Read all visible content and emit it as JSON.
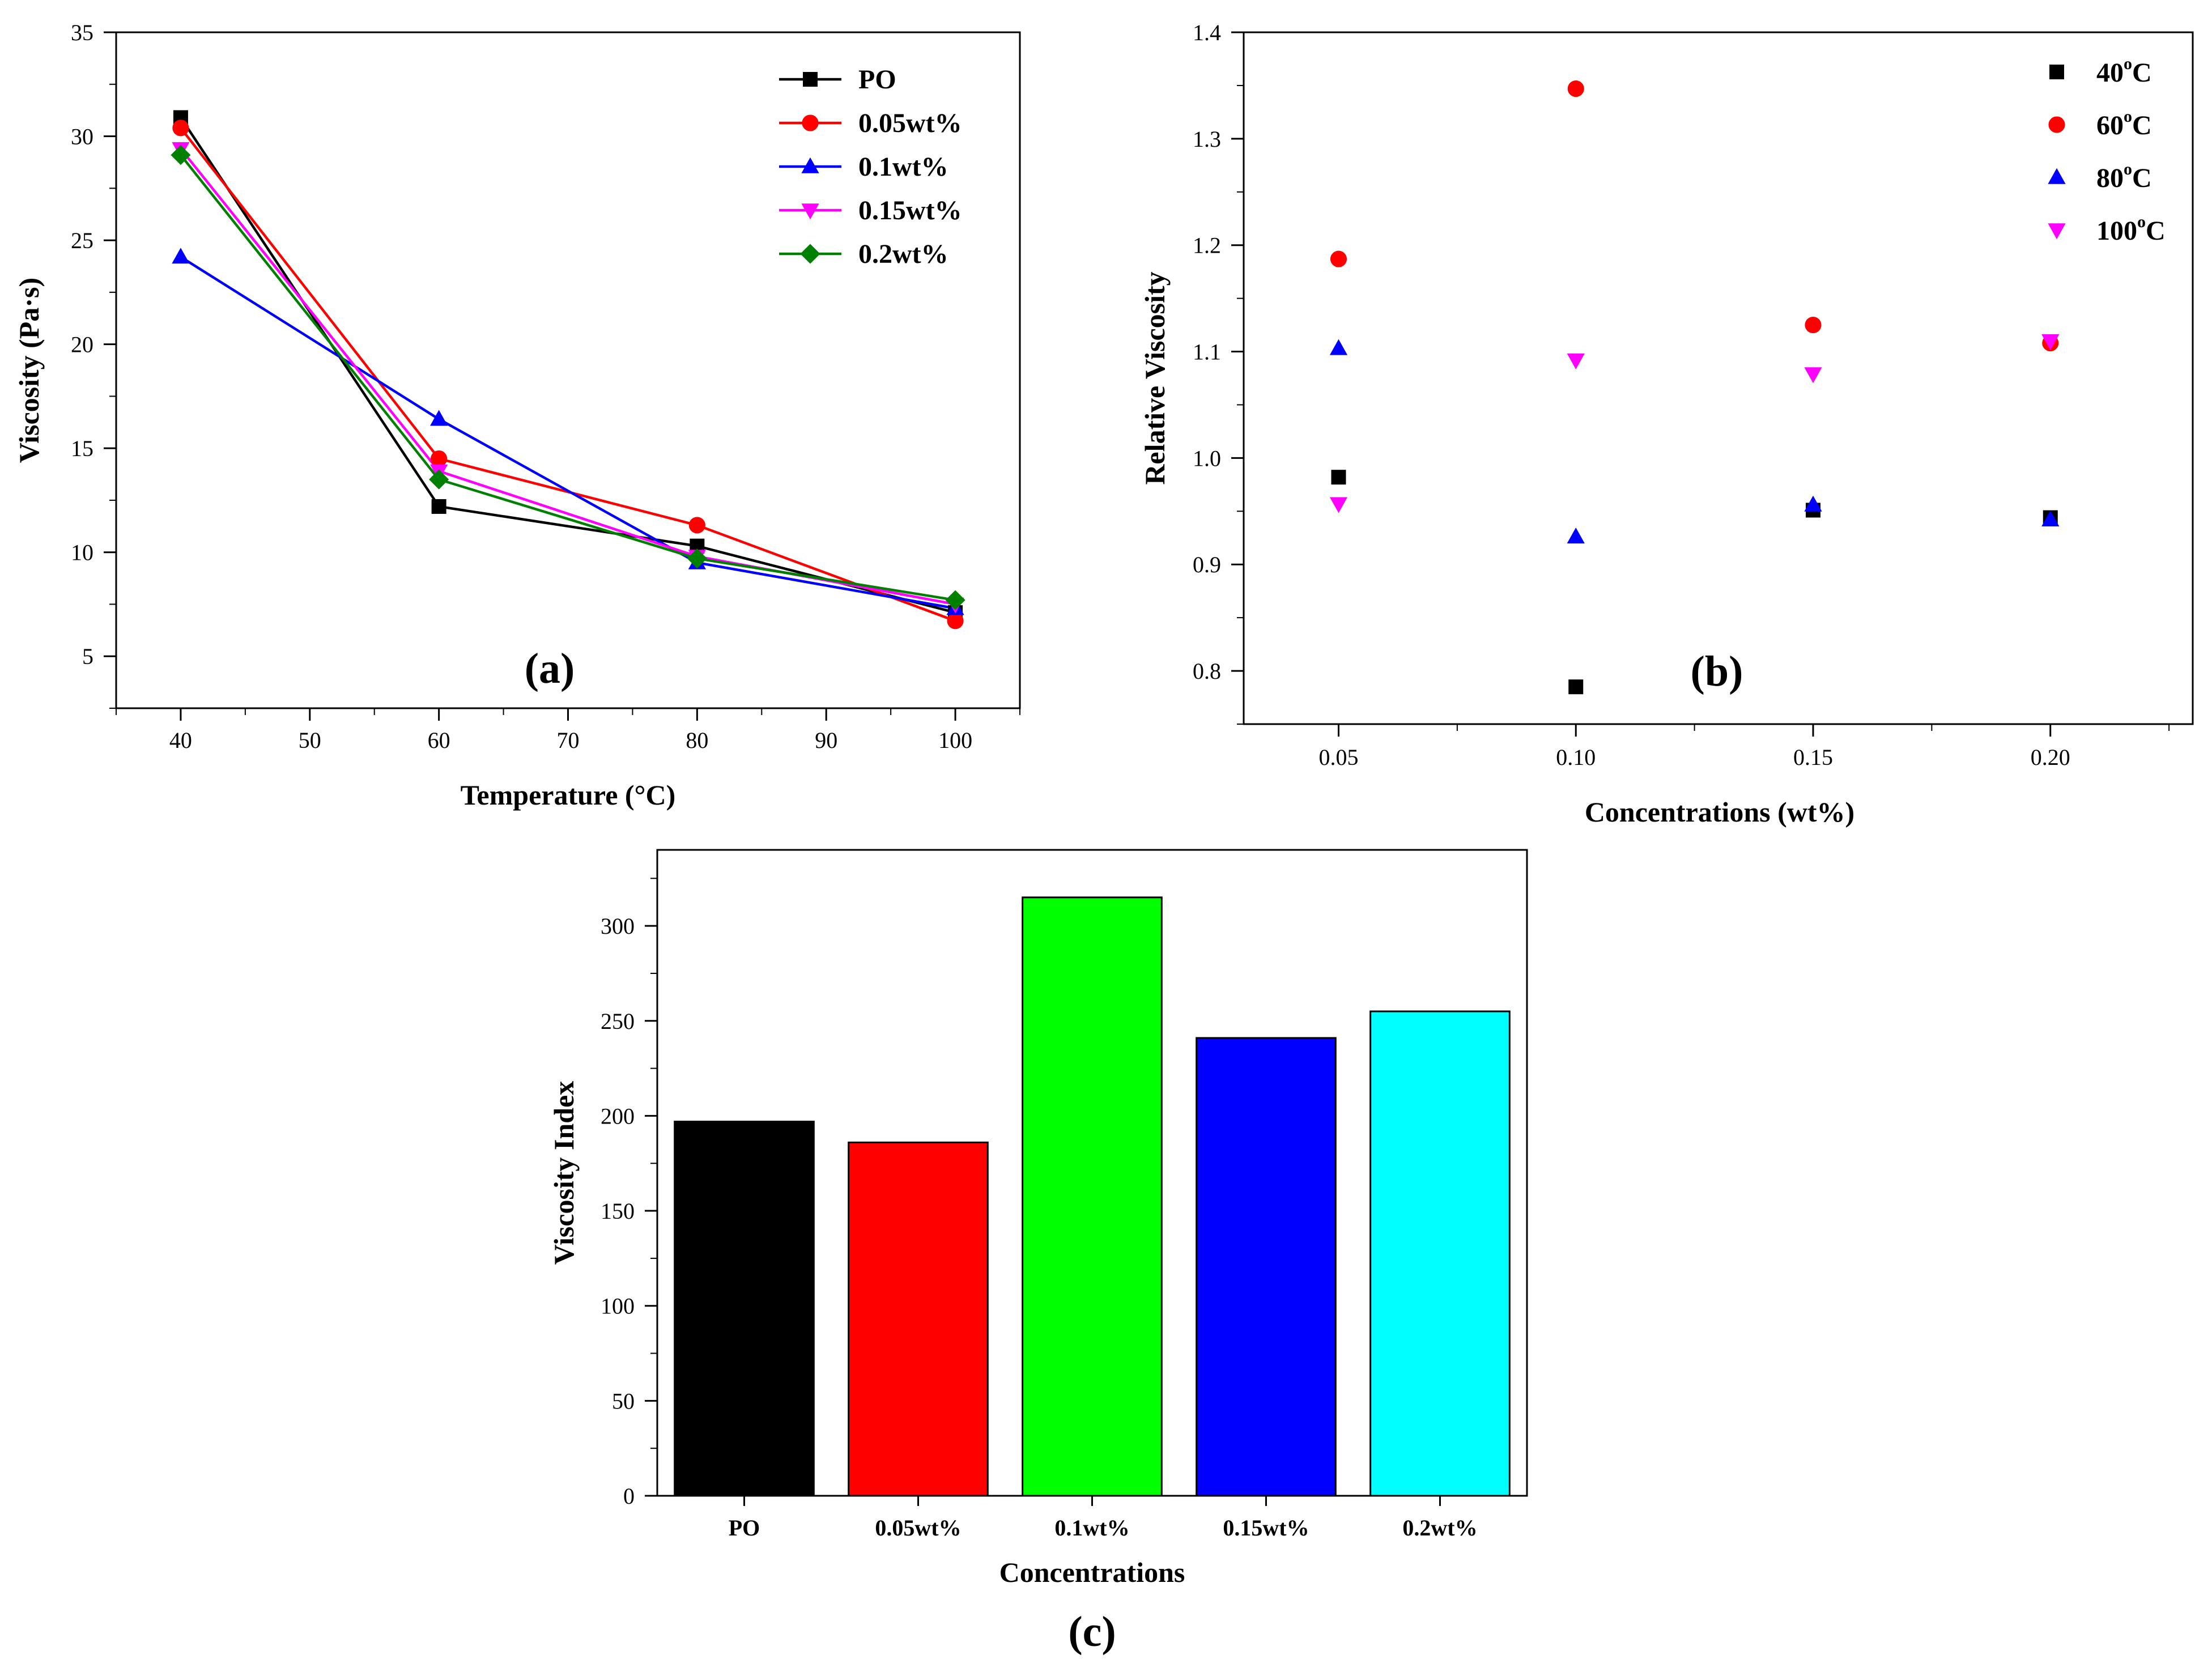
{
  "chart_data": [
    {
      "id": "a",
      "type": "line",
      "panel_label": "(a)",
      "xlabel": "Temperature (°C)",
      "ylabel": "Viscosity (Pa·s)",
      "xlim": [
        35,
        105
      ],
      "ylim": [
        2.5,
        35
      ],
      "xticks": [
        40,
        50,
        60,
        70,
        80,
        90,
        100
      ],
      "yticks": [
        5,
        10,
        15,
        20,
        25,
        30,
        35
      ],
      "legend_position": "top-right",
      "x": [
        40,
        60,
        80,
        100
      ],
      "series": [
        {
          "name": "PO",
          "color": "#000000",
          "marker": "square",
          "values": [
            30.9,
            12.2,
            10.3,
            7.1
          ]
        },
        {
          "name": "0.05wt%",
          "color": "#ff0000",
          "marker": "circle",
          "values": [
            30.4,
            14.5,
            11.3,
            6.7
          ]
        },
        {
          "name": "0.1wt%",
          "color": "#0000ff",
          "marker": "triangle-up",
          "values": [
            24.2,
            16.4,
            9.5,
            7.3
          ]
        },
        {
          "name": "0.15wt%",
          "color": "#ff00ff",
          "marker": "triangle-down",
          "values": [
            29.4,
            13.9,
            9.8,
            7.5
          ]
        },
        {
          "name": "0.2wt%",
          "color": "#008000",
          "marker": "diamond",
          "values": [
            29.1,
            13.5,
            9.7,
            7.7
          ]
        }
      ]
    },
    {
      "id": "b",
      "type": "scatter",
      "panel_label": "(b)",
      "xlabel": "Concentrations (wt%)",
      "ylabel": "Relative Viscosity",
      "xlim": [
        0.03,
        0.23
      ],
      "ylim": [
        0.75,
        1.4
      ],
      "xticks": [
        "0.05",
        "0.10",
        "0.15",
        "0.20"
      ],
      "yticks": [
        "0.8",
        "0.9",
        "1.0",
        "1.1",
        "1.2",
        "1.3",
        "1.4"
      ],
      "legend_position": "top-right",
      "x": [
        0.05,
        0.1,
        0.15,
        0.2
      ],
      "series": [
        {
          "name": "40",
          "unit": "C",
          "degree": "o",
          "color": "#000000",
          "marker": "square",
          "values": [
            0.982,
            0.785,
            0.951,
            0.944
          ]
        },
        {
          "name": "60",
          "unit": "C",
          "degree": "o",
          "color": "#ff0000",
          "marker": "circle",
          "values": [
            1.187,
            1.347,
            1.125,
            1.108
          ]
        },
        {
          "name": "80",
          "unit": "C",
          "degree": "o",
          "color": "#0000ff",
          "marker": "triangle-up",
          "values": [
            1.103,
            0.926,
            0.956,
            0.942
          ]
        },
        {
          "name": "100",
          "unit": "C",
          "degree": "o",
          "color": "#ff00ff",
          "marker": "triangle-down",
          "values": [
            0.957,
            1.092,
            1.079,
            1.11
          ]
        }
      ]
    },
    {
      "id": "c",
      "type": "bar",
      "panel_label": "(c)",
      "xlabel": "Concentrations",
      "ylabel": "Viscosity Index",
      "ylim": [
        0,
        340
      ],
      "yticks": [
        0,
        50,
        100,
        150,
        200,
        250,
        300
      ],
      "categories": [
        "PO",
        "0.05wt%",
        "0.1wt%",
        "0.15wt%",
        "0.2wt%"
      ],
      "values": [
        197,
        186,
        315,
        241,
        255
      ],
      "colors": [
        "#000000",
        "#ff0000",
        "#00ff00",
        "#0000ff",
        "#00ffff"
      ]
    }
  ]
}
